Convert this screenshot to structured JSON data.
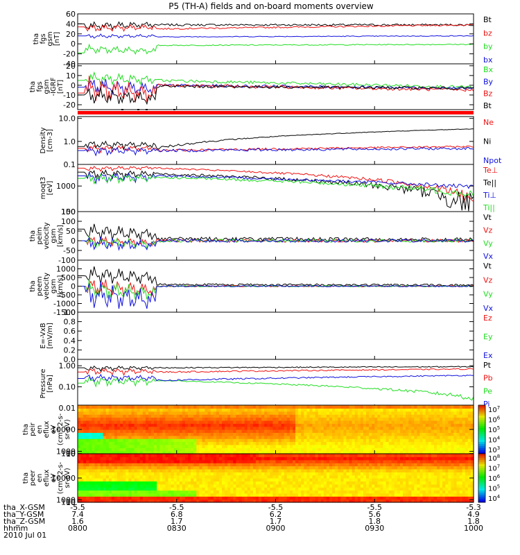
{
  "title": "P5 (TH-A) fields and on-board moments overview",
  "date_label": "2010 Jul 01",
  "colors": {
    "black": "#000000",
    "red": "#ee1111",
    "green": "#22dd22",
    "blue": "#1111dd",
    "bar": "#ff0000"
  },
  "ephemeris": {
    "row_labels": [
      "tha_X-GSM",
      "tha_Y-GSM",
      "tha_Z-GSM",
      "hhmm"
    ],
    "columns": [
      {
        "values": [
          "-5.5",
          "7.4",
          "1.6",
          "0800"
        ]
      },
      {
        "values": [
          "-5.5",
          "6.8",
          "1.7",
          "0830"
        ]
      },
      {
        "values": [
          "-5.5",
          "6.2",
          "1.7",
          "0900"
        ]
      },
      {
        "values": [
          "-5.5",
          "5.6",
          "1.8",
          "0930"
        ]
      },
      {
        "values": [
          "-5.3",
          "4.9",
          "1.8",
          "1000"
        ]
      }
    ]
  },
  "chart_data": [
    {
      "type": "line",
      "ylabel": [
        "tha",
        "fgs",
        "gsm",
        "[nT]"
      ],
      "ylim": [
        -40,
        60
      ],
      "ticks": [
        "60",
        "40",
        "20",
        "0",
        "-20",
        "-40"
      ],
      "tick_values": [
        60,
        40,
        20,
        0,
        -20,
        -40
      ],
      "series": [
        {
          "name": "Bt",
          "color": "#000000",
          "start": 40,
          "early": [
            25,
            45
          ],
          "trend": [
            38,
            38
          ],
          "wig": 2
        },
        {
          "name": "bz",
          "color": "#ee1111",
          "start": 34,
          "early": [
            22,
            40
          ],
          "trend": [
            30,
            38
          ],
          "wig": 1.5
        },
        {
          "name": "by",
          "color": "#22dd22",
          "start": -18,
          "early": [
            -20,
            0
          ],
          "trend": [
            -3,
            -1
          ],
          "wig": 1
        },
        {
          "name": "bx",
          "color": "#1111dd",
          "start": 16,
          "early": [
            10,
            20
          ],
          "trend": [
            14,
            16
          ],
          "wig": 0.8
        }
      ]
    },
    {
      "type": "line",
      "ylabel": [
        "tha",
        "fgs",
        "gsm",
        "-IGRF",
        "[nT]"
      ],
      "ylim": [
        -25,
        22
      ],
      "ticks": [
        "20",
        "10",
        "0",
        "-10",
        "-20"
      ],
      "tick_values": [
        20,
        10,
        0,
        -10,
        -20
      ],
      "series": [
        {
          "name": "Bx",
          "color": "#22dd22",
          "start": 5,
          "early": [
            0,
            15
          ],
          "trend": [
            5,
            -2
          ],
          "wig": 1.5
        },
        {
          "name": "By",
          "color": "#1111dd",
          "start": -2,
          "early": [
            -10,
            10
          ],
          "trend": [
            0,
            -3
          ],
          "wig": 1.5
        },
        {
          "name": "Bz",
          "color": "#ee1111",
          "start": -8,
          "early": [
            -18,
            12
          ],
          "trend": [
            0,
            -5
          ],
          "wig": 1.5
        },
        {
          "name": "Bt",
          "color": "#000000",
          "start": -10,
          "early": [
            -20,
            0
          ],
          "trend": [
            -1,
            -3
          ],
          "wig": 1.5
        }
      ]
    },
    {
      "type": "line",
      "log": true,
      "ylabel": [
        "Density",
        "[cm-3]"
      ],
      "ylim": [
        0.1,
        12
      ],
      "ticks": [
        "10.0",
        "1.0",
        "0.1"
      ],
      "tick_values": [
        10,
        1,
        0.1
      ],
      "series": [
        {
          "name": "Ne",
          "color": "#ee1111",
          "start": 0.5,
          "early": [
            0.3,
            0.7
          ],
          "trend": [
            0.4,
            0.6
          ],
          "wig": 0.05
        },
        {
          "name": "Ni",
          "color": "#000000",
          "start": 0.6,
          "early": [
            0.4,
            1.1
          ],
          "trend": [
            0.5,
            3.5
          ],
          "wig": 0.08
        },
        {
          "name": "Npot",
          "color": "#1111dd",
          "start": 0.4,
          "early": [
            0.2,
            0.6
          ],
          "trend": [
            0.4,
            0.5
          ],
          "wig": 0.06
        }
      ]
    },
    {
      "type": "line",
      "log": true,
      "ylabel": [
        "moqt3",
        "[eV]"
      ],
      "ylim": [
        100,
        7000
      ],
      "ticks": [
        "1000",
        "100"
      ],
      "tick_values": [
        1000,
        100
      ],
      "series": [
        {
          "name": "Te⊥",
          "color": "#ee1111",
          "start": 5000,
          "early": [
            3500,
            6000
          ],
          "trend": [
            5000,
            300
          ],
          "wig": 300
        },
        {
          "name": "Te||",
          "color": "#000000",
          "start": 3500,
          "early": [
            1500,
            4500
          ],
          "trend": [
            3000,
            200
          ],
          "wig": 300
        },
        {
          "name": "Ti⊥",
          "color": "#1111dd",
          "start": 2500,
          "early": [
            1000,
            3500
          ],
          "trend": [
            2500,
            900
          ],
          "wig": 200
        },
        {
          "name": "Ti||",
          "color": "#22dd22",
          "start": 2000,
          "early": [
            1000,
            3000
          ],
          "trend": [
            2200,
            500
          ],
          "wig": 200
        }
      ]
    },
    {
      "type": "line",
      "ylabel": [
        "tha",
        "peim",
        "velocity",
        "gsm",
        "[km/s]"
      ],
      "ylim": [
        -100,
        150
      ],
      "ticks": [
        "150",
        "100",
        "50",
        "0",
        "-50",
        "-100"
      ],
      "tick_values": [
        150,
        100,
        50,
        0,
        -50,
        -100
      ],
      "series": [
        {
          "name": "Vt",
          "color": "#000000",
          "start": 60,
          "early": [
            0,
            100
          ],
          "trend": [
            10,
            5
          ],
          "wig": 10
        },
        {
          "name": "Vz",
          "color": "#ee1111",
          "start": 0,
          "early": [
            -30,
            30
          ],
          "trend": [
            0,
            0
          ],
          "wig": 8
        },
        {
          "name": "Vy",
          "color": "#22dd22",
          "start": 0,
          "early": [
            -40,
            30
          ],
          "trend": [
            0,
            0
          ],
          "wig": 8
        },
        {
          "name": "Vx",
          "color": "#1111dd",
          "start": 0,
          "early": [
            -50,
            30
          ],
          "trend": [
            0,
            0
          ],
          "wig": 8
        }
      ]
    },
    {
      "type": "line",
      "ylabel": [
        "tha",
        "peem",
        "velocity",
        "gsm",
        "[km/s]"
      ],
      "ylim": [
        -1500,
        1500
      ],
      "ticks": [
        "1000",
        "500",
        "0",
        "-500",
        "-1000",
        "-1500"
      ],
      "tick_values": [
        1000,
        500,
        0,
        -500,
        -1000,
        -1500
      ],
      "series": [
        {
          "name": "Vt",
          "color": "#000000",
          "start": 600,
          "early": [
            100,
            1300
          ],
          "trend": [
            100,
            60
          ],
          "wig": 60
        },
        {
          "name": "Vz",
          "color": "#ee1111",
          "start": 0,
          "early": [
            -600,
            600
          ],
          "trend": [
            0,
            0
          ],
          "wig": 40
        },
        {
          "name": "Vy",
          "color": "#22dd22",
          "start": 0,
          "early": [
            -800,
            500
          ],
          "trend": [
            0,
            0
          ],
          "wig": 40
        },
        {
          "name": "Vx",
          "color": "#1111dd",
          "start": 0,
          "early": [
            -1400,
            500
          ],
          "trend": [
            0,
            0
          ],
          "wig": 40
        }
      ]
    },
    {
      "type": "line",
      "ylabel": [
        "E=-VxB",
        "[mV/m]"
      ],
      "ylim": [
        0,
        1
      ],
      "ticks": [
        "1.0",
        "0.8",
        "0.6",
        "0.4",
        "0.2",
        "0.0"
      ],
      "tick_values": [
        1,
        0.8,
        0.6,
        0.4,
        0.2,
        0
      ],
      "series": [
        {
          "name": "Ez",
          "color": "#ee1111"
        },
        {
          "name": "Ey",
          "color": "#22dd22"
        },
        {
          "name": "Ex",
          "color": "#1111dd"
        }
      ]
    },
    {
      "type": "line",
      "log": true,
      "ylabel": [
        "Pressure",
        "[nPa]"
      ],
      "ylim": [
        0.01,
        2
      ],
      "ticks": [
        "1.00",
        "0.10",
        "0.01"
      ],
      "tick_values": [
        1,
        0.1,
        0.01
      ],
      "series": [
        {
          "name": "Pt",
          "color": "#000000",
          "start": 0.8,
          "early": [
            0.5,
            1.0
          ],
          "trend": [
            0.8,
            0.9
          ],
          "wig": 0.05
        },
        {
          "name": "Pb",
          "color": "#ee1111",
          "start": 0.5,
          "early": [
            0.3,
            0.8
          ],
          "trend": [
            0.5,
            0.7
          ],
          "wig": 0.04
        },
        {
          "name": "Pe",
          "color": "#22dd22",
          "start": 0.15,
          "early": [
            0.08,
            0.3
          ],
          "trend": [
            0.2,
            0.03
          ],
          "wig": 0.01
        },
        {
          "name": "Pi",
          "color": "#1111dd",
          "start": 0.25,
          "early": [
            0.15,
            0.4
          ],
          "trend": [
            0.2,
            0.35
          ],
          "wig": 0.02
        }
      ]
    },
    {
      "type": "heatmap",
      "ylabel": [
        "tha",
        "peir",
        "en",
        "eflux",
        "eV",
        "(cm^2-s-",
        "sr-eV)"
      ],
      "ylim": [
        10,
        20000
      ],
      "ticks": [
        "10000",
        "1000",
        "100",
        "10"
      ],
      "tick_values": [
        10000,
        1000,
        100,
        10
      ],
      "colorbar": [
        "10^7",
        "10^6",
        "10^5",
        "10^4",
        "10^3"
      ]
    },
    {
      "type": "heatmap",
      "ylabel": [
        "tha",
        "peer",
        "en",
        "eflux",
        "eV",
        "(cm^2-s-",
        "sr-eV)"
      ],
      "ylim": [
        7,
        20000
      ],
      "ticks": [
        "10000",
        "1000",
        "100",
        "10"
      ],
      "tick_values": [
        10000,
        1000,
        100,
        10
      ],
      "colorbar": [
        "10^8",
        "10^7",
        "10^6",
        "10^5",
        "10^4"
      ]
    }
  ]
}
